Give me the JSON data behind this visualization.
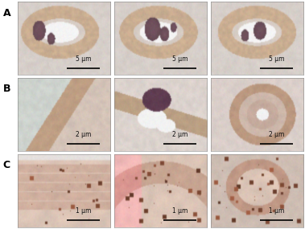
{
  "title": "",
  "nrows": 3,
  "ncols": 3,
  "row_labels": [
    "A",
    "B",
    "C"
  ],
  "scale_bars": [
    [
      "5 μm",
      "5 μm",
      "5 μm"
    ],
    [
      "2 μm",
      "2 μm",
      "2 μm"
    ],
    [
      "1 μm",
      "1 μm",
      "1 μm"
    ]
  ],
  "background_color": "#ffffff",
  "label_color": "#000000",
  "scalebar_line_color": "#000000",
  "scalebar_text_color": "#111111",
  "label_fontsize": 9,
  "scalebar_fontsize": 5.5
}
